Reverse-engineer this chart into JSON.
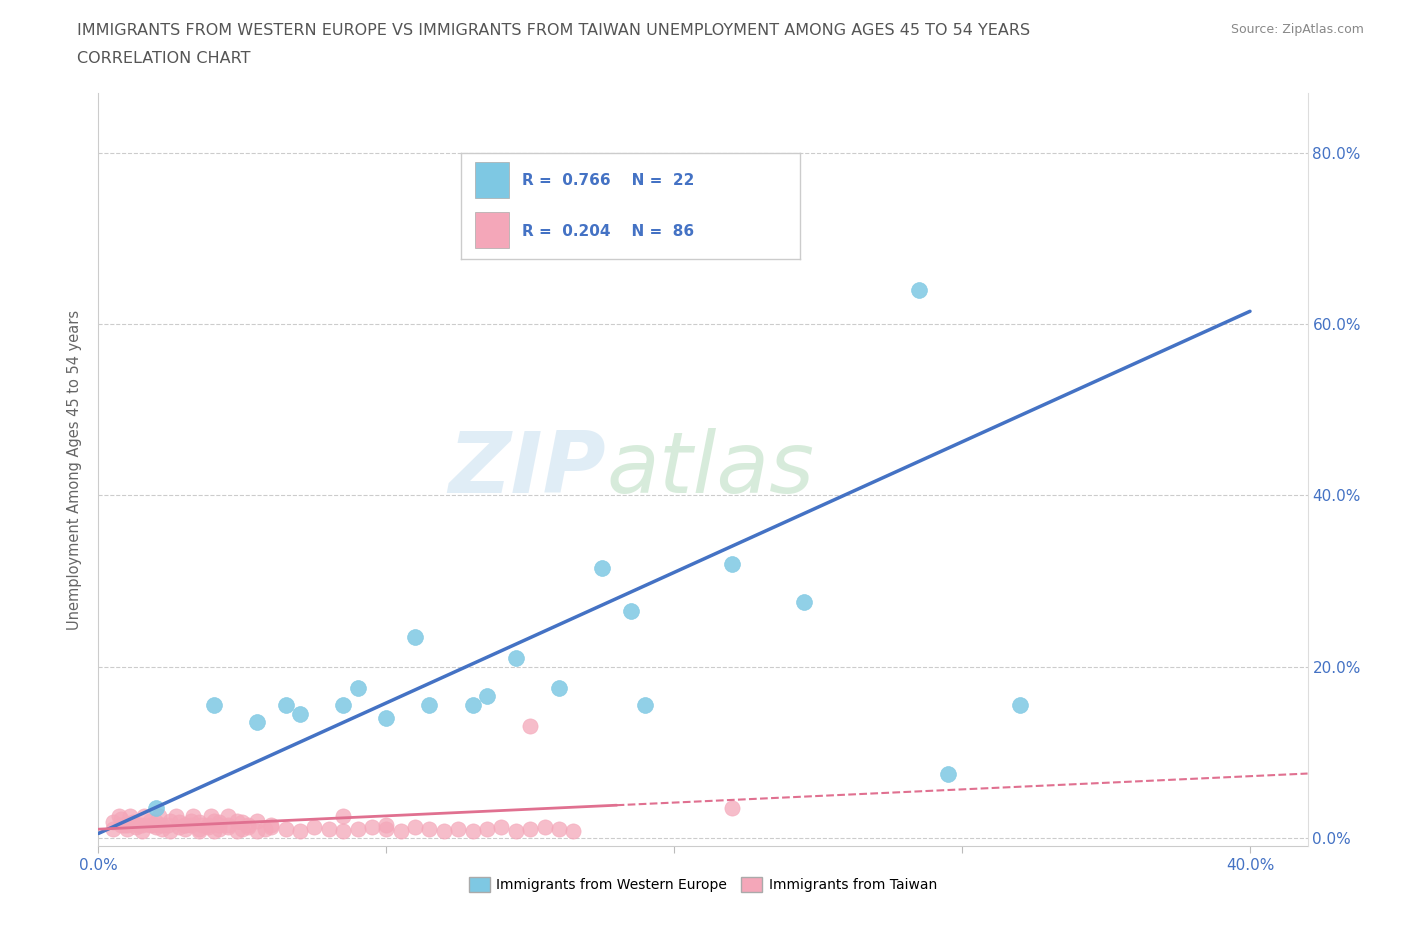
{
  "title_line1": "IMMIGRANTS FROM WESTERN EUROPE VS IMMIGRANTS FROM TAIWAN UNEMPLOYMENT AMONG AGES 45 TO 54 YEARS",
  "title_line2": "CORRELATION CHART",
  "source_text": "Source: ZipAtlas.com",
  "ylabel": "Unemployment Among Ages 45 to 54 years",
  "xlim": [
    0.0,
    0.42
  ],
  "ylim": [
    -0.01,
    0.87
  ],
  "xticks": [
    0.0,
    0.1,
    0.2,
    0.3,
    0.4
  ],
  "xtick_labels": [
    "0.0%",
    "",
    "",
    "",
    "40.0%"
  ],
  "ytick_labels": [
    "0.0%",
    "20.0%",
    "40.0%",
    "60.0%",
    "80.0%"
  ],
  "yticks": [
    0.0,
    0.2,
    0.4,
    0.6,
    0.8
  ],
  "watermark_zip": "ZIP",
  "watermark_atlas": "atlas",
  "color_blue": "#7ec8e3",
  "color_pink": "#f4a7b9",
  "color_blue_line": "#4472c4",
  "color_pink_line": "#e07090",
  "trendline_blue": [
    [
      0.0,
      0.005
    ],
    [
      0.4,
      0.615
    ]
  ],
  "trendline_pink_solid": [
    [
      0.0,
      0.01
    ],
    [
      0.18,
      0.038
    ]
  ],
  "trendline_pink_dashed": [
    [
      0.18,
      0.038
    ],
    [
      0.42,
      0.075
    ]
  ],
  "blue_x": [
    0.02,
    0.04,
    0.055,
    0.065,
    0.07,
    0.085,
    0.09,
    0.1,
    0.11,
    0.115,
    0.13,
    0.135,
    0.145,
    0.16,
    0.175,
    0.185,
    0.19,
    0.22,
    0.245,
    0.285,
    0.295,
    0.32
  ],
  "blue_y": [
    0.035,
    0.155,
    0.135,
    0.155,
    0.145,
    0.155,
    0.175,
    0.14,
    0.235,
    0.155,
    0.155,
    0.165,
    0.21,
    0.175,
    0.315,
    0.265,
    0.155,
    0.32,
    0.275,
    0.64,
    0.075,
    0.155
  ],
  "pink_x": [
    0.005,
    0.008,
    0.01,
    0.013,
    0.015,
    0.018,
    0.02,
    0.022,
    0.025,
    0.028,
    0.03,
    0.032,
    0.035,
    0.038,
    0.04,
    0.042,
    0.045,
    0.048,
    0.05,
    0.052,
    0.055,
    0.058,
    0.06,
    0.065,
    0.07,
    0.075,
    0.08,
    0.085,
    0.09,
    0.095,
    0.1,
    0.105,
    0.11,
    0.115,
    0.12,
    0.125,
    0.13,
    0.135,
    0.14,
    0.145,
    0.15,
    0.155,
    0.16,
    0.165,
    0.005,
    0.008,
    0.01,
    0.012,
    0.015,
    0.018,
    0.02,
    0.022,
    0.025,
    0.028,
    0.03,
    0.032,
    0.035,
    0.038,
    0.04,
    0.042,
    0.045,
    0.048,
    0.05,
    0.052,
    0.055,
    0.007,
    0.009,
    0.011,
    0.014,
    0.016,
    0.019,
    0.021,
    0.024,
    0.027,
    0.03,
    0.033,
    0.036,
    0.039,
    0.042,
    0.045,
    0.22,
    0.15,
    0.085,
    0.06,
    0.035,
    0.1
  ],
  "pink_y": [
    0.01,
    0.015,
    0.01,
    0.012,
    0.008,
    0.015,
    0.012,
    0.01,
    0.008,
    0.012,
    0.01,
    0.015,
    0.01,
    0.012,
    0.008,
    0.01,
    0.012,
    0.008,
    0.01,
    0.012,
    0.008,
    0.01,
    0.012,
    0.01,
    0.008,
    0.012,
    0.01,
    0.008,
    0.01,
    0.012,
    0.01,
    0.008,
    0.012,
    0.01,
    0.008,
    0.01,
    0.008,
    0.01,
    0.012,
    0.008,
    0.01,
    0.012,
    0.01,
    0.008,
    0.018,
    0.022,
    0.015,
    0.018,
    0.015,
    0.02,
    0.018,
    0.015,
    0.02,
    0.018,
    0.015,
    0.02,
    0.018,
    0.015,
    0.02,
    0.018,
    0.015,
    0.02,
    0.018,
    0.015,
    0.02,
    0.025,
    0.015,
    0.025,
    0.015,
    0.025,
    0.015,
    0.025,
    0.015,
    0.025,
    0.015,
    0.025,
    0.015,
    0.025,
    0.015,
    0.025,
    0.035,
    0.13,
    0.025,
    0.015,
    0.008,
    0.015
  ]
}
